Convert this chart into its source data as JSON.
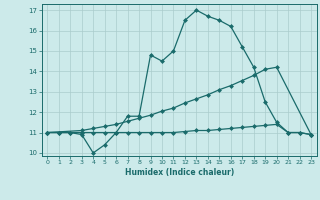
{
  "xlabel": "Humidex (Indice chaleur)",
  "xlim": [
    -0.5,
    23.5
  ],
  "ylim": [
    9.85,
    17.3
  ],
  "yticks": [
    10,
    11,
    12,
    13,
    14,
    15,
    16,
    17
  ],
  "xticks": [
    0,
    1,
    2,
    3,
    4,
    5,
    6,
    7,
    8,
    9,
    10,
    11,
    12,
    13,
    14,
    15,
    16,
    17,
    18,
    19,
    20,
    21,
    22,
    23
  ],
  "bg_color": "#cceaea",
  "grid_color": "#aacccc",
  "line_color": "#1a6b6b",
  "line1_x": [
    0,
    1,
    2,
    3,
    4,
    5,
    6,
    7,
    8,
    9,
    10,
    11,
    12,
    13,
    14,
    15,
    16,
    17,
    18,
    19,
    20,
    21,
    22,
    23
  ],
  "line1_y": [
    11.0,
    11.0,
    11.0,
    10.9,
    10.0,
    10.4,
    11.0,
    11.8,
    11.8,
    14.8,
    14.5,
    15.0,
    16.5,
    17.0,
    16.7,
    16.5,
    16.2,
    15.2,
    14.2,
    12.5,
    11.5,
    11.0,
    11.0,
    10.9
  ],
  "line2_x": [
    0,
    3,
    4,
    5,
    6,
    7,
    8,
    9,
    10,
    11,
    12,
    13,
    14,
    15,
    16,
    17,
    18,
    19,
    20,
    23
  ],
  "line2_y": [
    11.0,
    11.1,
    11.2,
    11.3,
    11.4,
    11.55,
    11.7,
    11.85,
    12.05,
    12.2,
    12.45,
    12.65,
    12.85,
    13.1,
    13.3,
    13.55,
    13.8,
    14.1,
    14.2,
    10.9
  ],
  "line3_x": [
    0,
    1,
    2,
    3,
    4,
    5,
    6,
    7,
    8,
    9,
    10,
    11,
    12,
    13,
    14,
    15,
    16,
    17,
    18,
    19,
    20,
    21,
    22,
    23
  ],
  "line3_y": [
    11.0,
    11.0,
    11.0,
    11.0,
    11.0,
    11.0,
    11.0,
    11.0,
    11.0,
    11.0,
    11.0,
    11.0,
    11.05,
    11.1,
    11.1,
    11.15,
    11.2,
    11.25,
    11.3,
    11.35,
    11.4,
    11.0,
    11.0,
    10.9
  ]
}
